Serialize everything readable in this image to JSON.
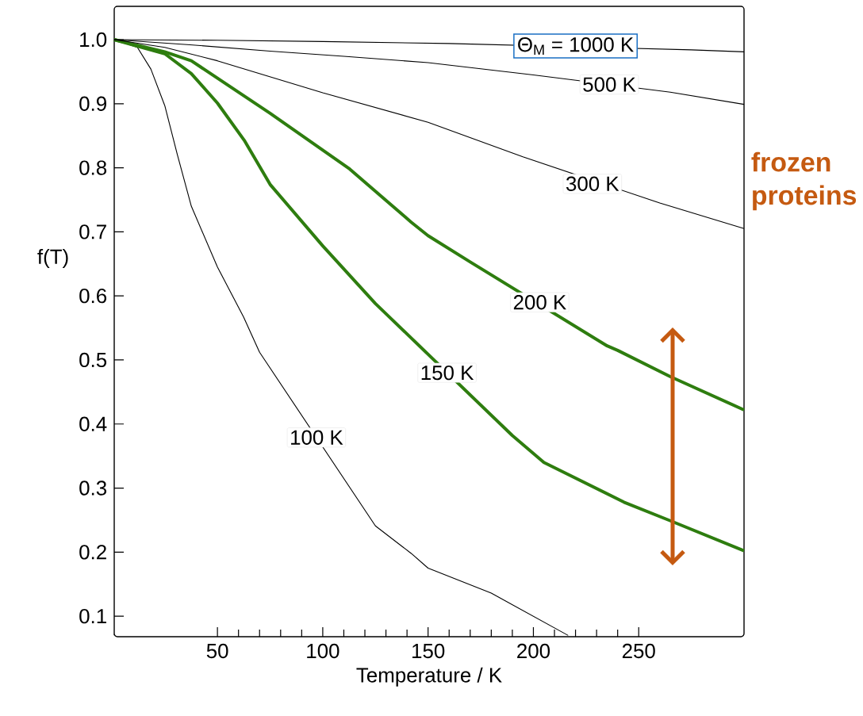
{
  "chart_data": {
    "type": "line",
    "xlabel": "Temperature / K",
    "ylabel": "f(T)",
    "x": [
      1,
      12,
      18.4,
      25,
      31,
      37.6,
      50,
      62.4,
      70,
      125,
      142,
      150,
      180,
      216.5
    ],
    "series": [
      {
        "color": "#000000",
        "values": [
          1.0,
          0.988,
          0.954,
          0.897,
          0.82,
          0.74,
          0.645,
          0.567,
          0.512,
          0.241,
          0.198,
          0.175,
          0.136,
          0.07
        ]
      },
      {
        "color": "#2e7d0f",
        "x": [
          1,
          25,
          37.6,
          50,
          62.7,
          75,
          100,
          125,
          190,
          205,
          243,
          265,
          300
        ],
        "values": [
          1.0,
          0.978,
          0.947,
          0.901,
          0.843,
          0.774,
          0.678,
          0.588,
          0.382,
          0.34,
          0.278,
          0.249,
          0.202
        ]
      },
      {
        "color": "#2e7d0f",
        "x": [
          1,
          25,
          37.6,
          75,
          112.8,
          142,
          150,
          170,
          235,
          240,
          265,
          300
        ],
        "values": [
          1.0,
          0.981,
          0.967,
          0.885,
          0.798,
          0.715,
          0.694,
          0.653,
          0.522,
          0.515,
          0.474,
          0.422
        ]
      },
      {
        "color": "#000000",
        "x": [
          1,
          25,
          50,
          100,
          150,
          195,
          260,
          300
        ],
        "values": [
          1.0,
          0.988,
          0.967,
          0.917,
          0.871,
          0.817,
          0.745,
          0.705
        ]
      },
      {
        "color": "#000000",
        "x": [
          1,
          37,
          75,
          110,
          150,
          200,
          265,
          300
        ],
        "values": [
          1.0,
          0.992,
          0.982,
          0.974,
          0.964,
          0.945,
          0.918,
          0.899
        ]
      },
      {
        "color": "#000000",
        "x": [
          1,
          50,
          100,
          160,
          275,
          300
        ],
        "values": [
          1.0,
          0.999,
          0.997,
          0.994,
          0.984,
          0.981
        ]
      }
    ],
    "xlim": [
      1,
      300
    ],
    "ylim": [
      0.068,
      1.052
    ],
    "xticks": [
      50,
      100,
      150,
      200,
      250
    ],
    "yticks": [
      0.1,
      0.2,
      0.3,
      0.4,
      0.5,
      0.6,
      0.7,
      0.8,
      0.9,
      {
        "value": 1.0,
        "label": "1.0"
      }
    ],
    "annotations": [
      {
        "text": "Θ$_{M}$ = 1000 K",
        "x": 220,
        "y": 0.99
      },
      {
        "text": "500 K",
        "x": 236,
        "y": 0.93
      },
      {
        "text": "300 K",
        "x": 228,
        "y": 0.775
      },
      {
        "text": "200 K",
        "x": 203,
        "y": 0.59
      },
      {
        "text": "150 K",
        "x": 159,
        "y": 0.48
      },
      {
        "text": "100 K",
        "x": 97,
        "y": 0.379
      },
      "frozen proteins"
    ],
    "grid": false,
    "marker": "none",
    "line_style": "solid"
  }
}
